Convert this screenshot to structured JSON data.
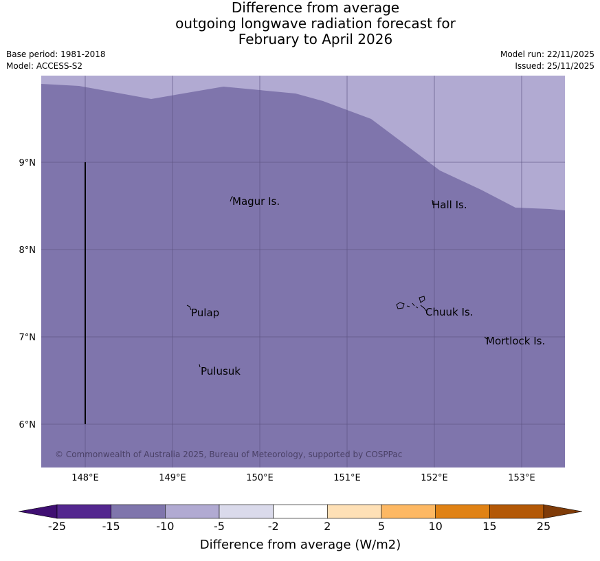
{
  "title": {
    "line1": "Difference from average",
    "line2": "outgoing longwave radiation forecast for",
    "line3": "February to April 2026"
  },
  "meta": {
    "base_period": "Base period: 1981-2018",
    "model": "Model: ACCESS-S2",
    "model_run": "Model run: 22/11/2025",
    "issued": "Issued: 25/11/2025"
  },
  "map": {
    "lat_labels": [
      "9°N",
      "8°N",
      "7°N",
      "6°N"
    ],
    "lon_labels": [
      "148°E",
      "149°E",
      "150°E",
      "151°E",
      "152°E",
      "153°E"
    ],
    "places": [
      "Magur Is.",
      "Hall Is.",
      "Pulap",
      "Chuuk Is.",
      "Mortlock Is.",
      "Pulusuk"
    ],
    "copyright": "© Commonwealth of Australia 2025, Bureau of Meteorology, supported by COSPPac",
    "colors": {
      "main_fill": "#7f75ac",
      "upper_fill": "#b1aad2",
      "grid": "#5a5080"
    }
  },
  "colorbar": {
    "title": "Difference from average (W/m2)",
    "ticks": [
      "-25",
      "-15",
      "-10",
      "-5",
      "-2",
      "2",
      "5",
      "10",
      "15",
      "25"
    ],
    "colors": [
      "#3f0f72",
      "#54278f",
      "#7f75ac",
      "#b1aad2",
      "#dadaeb",
      "#ffffff",
      "#fee0b6",
      "#fdb863",
      "#e08214",
      "#b35806",
      "#7f3b08"
    ]
  }
}
